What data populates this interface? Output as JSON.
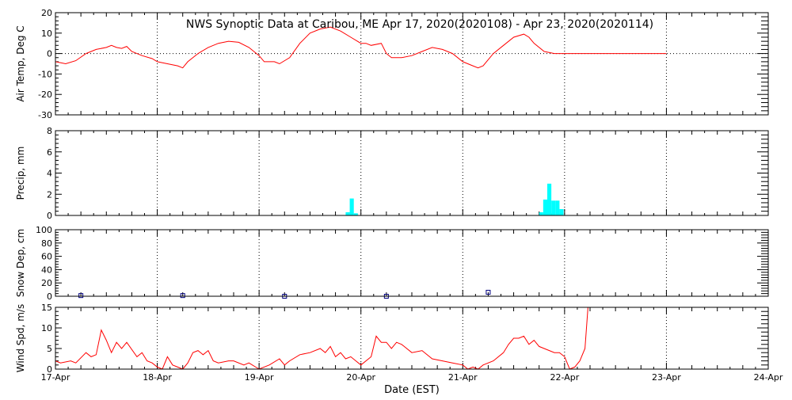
{
  "title": "NWS Synoptic Data at Caribou, ME   Apr 17, 2020(2020108) - Apr 23, 2020(2020114)",
  "xlabel": "Date (EST)",
  "x_ticks": [
    "17-Apr",
    "18-Apr",
    "19-Apr",
    "20-Apr",
    "21-Apr",
    "22-Apr",
    "23-Apr",
    "24-Apr"
  ],
  "colors": {
    "temp_line": "#ff0000",
    "precip_bar": "#00ffff",
    "snow_marker": "#000080",
    "wind_line": "#ff0000",
    "axes": "#000000"
  },
  "chart_data": [
    {
      "panel": "temp",
      "type": "line",
      "ylabel": "Air Temp, Deg C",
      "ylim": [
        -30,
        20
      ],
      "yticks": [
        -30,
        -20,
        -10,
        0,
        10,
        20
      ],
      "x_unit": "days since 17-Apr 00:00",
      "xlim": [
        0,
        7
      ],
      "series": [
        {
          "name": "Air Temp",
          "points": [
            [
              0.0,
              -4
            ],
            [
              0.1,
              -5
            ],
            [
              0.2,
              -3.5
            ],
            [
              0.3,
              0
            ],
            [
              0.4,
              2
            ],
            [
              0.5,
              3
            ],
            [
              0.55,
              4
            ],
            [
              0.6,
              3
            ],
            [
              0.65,
              2.5
            ],
            [
              0.7,
              3.5
            ],
            [
              0.75,
              1
            ],
            [
              0.85,
              -1
            ],
            [
              0.95,
              -2.5
            ],
            [
              1.0,
              -4
            ],
            [
              1.1,
              -5
            ],
            [
              1.2,
              -6
            ],
            [
              1.25,
              -7
            ],
            [
              1.3,
              -4
            ],
            [
              1.4,
              0
            ],
            [
              1.5,
              3
            ],
            [
              1.6,
              5
            ],
            [
              1.7,
              6
            ],
            [
              1.8,
              5.5
            ],
            [
              1.9,
              3
            ],
            [
              2.0,
              -1
            ],
            [
              2.05,
              -4
            ],
            [
              2.15,
              -4
            ],
            [
              2.2,
              -5
            ],
            [
              2.3,
              -2
            ],
            [
              2.4,
              5
            ],
            [
              2.5,
              10
            ],
            [
              2.6,
              12
            ],
            [
              2.7,
              13
            ],
            [
              2.8,
              11
            ],
            [
              2.9,
              8
            ],
            [
              3.0,
              5
            ],
            [
              3.05,
              5
            ],
            [
              3.1,
              4
            ],
            [
              3.2,
              5
            ],
            [
              3.25,
              0
            ],
            [
              3.3,
              -2
            ],
            [
              3.4,
              -2
            ],
            [
              3.5,
              -1
            ],
            [
              3.6,
              1
            ],
            [
              3.7,
              3
            ],
            [
              3.8,
              2
            ],
            [
              3.9,
              0
            ],
            [
              4.0,
              -4
            ],
            [
              4.1,
              -6
            ],
            [
              4.15,
              -7
            ],
            [
              4.2,
              -6
            ],
            [
              4.3,
              0
            ],
            [
              4.4,
              4
            ],
            [
              4.5,
              8
            ],
            [
              4.6,
              9.5
            ],
            [
              4.65,
              8
            ],
            [
              4.7,
              5
            ],
            [
              4.8,
              1
            ],
            [
              4.9,
              0
            ],
            [
              5.0,
              0
            ],
            [
              5.5,
              0
            ],
            [
              6.0,
              0
            ]
          ]
        }
      ]
    },
    {
      "panel": "precip",
      "type": "bar",
      "ylabel": "Precip, mm",
      "ylim": [
        0,
        8
      ],
      "yticks": [
        0,
        2,
        4,
        6,
        8
      ],
      "xlim": [
        0,
        7
      ],
      "bar_width_days": 0.04,
      "bars": [
        [
          2.85,
          0.3
        ],
        [
          2.89,
          1.6
        ],
        [
          2.93,
          0.2
        ],
        [
          4.75,
          0.3
        ],
        [
          4.79,
          1.5
        ],
        [
          4.83,
          3.0
        ],
        [
          4.87,
          1.4
        ],
        [
          4.91,
          1.4
        ],
        [
          4.95,
          0.6
        ]
      ]
    },
    {
      "panel": "snow",
      "type": "scatter",
      "ylabel": "Snow Dep, cm",
      "ylim": [
        0,
        100
      ],
      "yticks": [
        0,
        20,
        40,
        60,
        80,
        100
      ],
      "xlim": [
        0,
        7
      ],
      "points": [
        [
          0.25,
          1
        ],
        [
          1.25,
          1
        ],
        [
          2.25,
          0
        ],
        [
          3.25,
          0
        ],
        [
          4.25,
          6
        ]
      ]
    },
    {
      "panel": "wind",
      "type": "line",
      "ylabel": "Wind Spd, m/s",
      "ylim": [
        0,
        15
      ],
      "yticks": [
        0,
        5,
        10,
        15
      ],
      "xlim": [
        0,
        7
      ],
      "series": [
        {
          "name": "Wind Spd",
          "points": [
            [
              0.0,
              2
            ],
            [
              0.05,
              1.5
            ],
            [
              0.15,
              2
            ],
            [
              0.2,
              1.5
            ],
            [
              0.3,
              4
            ],
            [
              0.35,
              3
            ],
            [
              0.4,
              3.5
            ],
            [
              0.45,
              9.5
            ],
            [
              0.5,
              7
            ],
            [
              0.55,
              4
            ],
            [
              0.6,
              6.5
            ],
            [
              0.65,
              5
            ],
            [
              0.7,
              6.5
            ],
            [
              0.8,
              3
            ],
            [
              0.85,
              4
            ],
            [
              0.9,
              2
            ],
            [
              0.95,
              1.5
            ],
            [
              1.0,
              0.5
            ],
            [
              1.05,
              0
            ],
            [
              1.1,
              3
            ],
            [
              1.15,
              1
            ],
            [
              1.2,
              0.5
            ],
            [
              1.25,
              0
            ],
            [
              1.3,
              1.5
            ],
            [
              1.35,
              4
            ],
            [
              1.4,
              4.5
            ],
            [
              1.45,
              3.5
            ],
            [
              1.5,
              4.5
            ],
            [
              1.55,
              2
            ],
            [
              1.6,
              1.5
            ],
            [
              1.7,
              2
            ],
            [
              1.75,
              2
            ],
            [
              1.85,
              1
            ],
            [
              1.9,
              1.5
            ],
            [
              2.0,
              0
            ],
            [
              2.1,
              1
            ],
            [
              2.2,
              2.5
            ],
            [
              2.25,
              1
            ],
            [
              2.3,
              2
            ],
            [
              2.4,
              3.5
            ],
            [
              2.5,
              4
            ],
            [
              2.6,
              5
            ],
            [
              2.65,
              4
            ],
            [
              2.7,
              5.5
            ],
            [
              2.75,
              3
            ],
            [
              2.8,
              4
            ],
            [
              2.85,
              2.5
            ],
            [
              2.9,
              3
            ],
            [
              2.95,
              2
            ],
            [
              3.0,
              1
            ],
            [
              3.1,
              3
            ],
            [
              3.15,
              8
            ],
            [
              3.2,
              6.5
            ],
            [
              3.25,
              6.5
            ],
            [
              3.3,
              5
            ],
            [
              3.35,
              6.5
            ],
            [
              3.4,
              6
            ],
            [
              3.5,
              4
            ],
            [
              3.6,
              4.5
            ],
            [
              3.7,
              2.5
            ],
            [
              3.8,
              2
            ],
            [
              3.9,
              1.5
            ],
            [
              4.0,
              1
            ],
            [
              4.05,
              0
            ],
            [
              4.1,
              0.5
            ],
            [
              4.15,
              0
            ],
            [
              4.2,
              1
            ],
            [
              4.3,
              2
            ],
            [
              4.4,
              4
            ],
            [
              4.45,
              6
            ],
            [
              4.5,
              7.5
            ],
            [
              4.55,
              7.5
            ],
            [
              4.6,
              8
            ],
            [
              4.65,
              6
            ],
            [
              4.7,
              7
            ],
            [
              4.75,
              5.5
            ],
            [
              4.8,
              5
            ],
            [
              4.85,
              4.5
            ],
            [
              4.9,
              4
            ],
            [
              4.95,
              4
            ],
            [
              5.0,
              3
            ],
            [
              5.05,
              0
            ],
            [
              5.1,
              0.5
            ],
            [
              5.15,
              2
            ],
            [
              5.2,
              5
            ],
            [
              5.23,
              15
            ]
          ]
        }
      ]
    }
  ]
}
